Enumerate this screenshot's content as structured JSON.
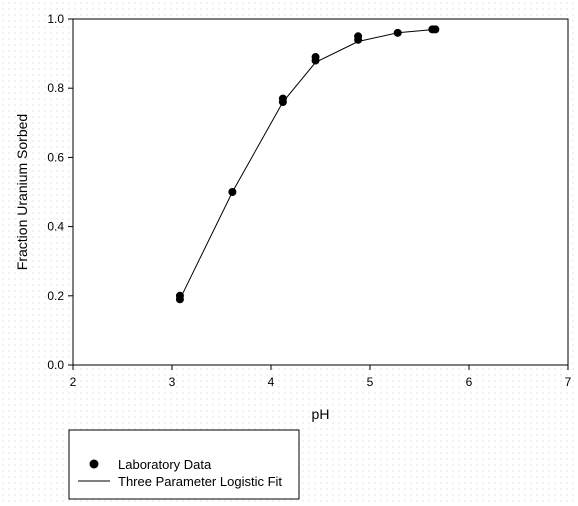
{
  "chart_data": {
    "type": "scatter",
    "xlabel": "pH",
    "ylabel": "Fraction Uranium Sorbed",
    "xlim": [
      2,
      7
    ],
    "ylim": [
      0,
      1.0
    ],
    "x_ticks": [
      "2",
      "3",
      "4",
      "5",
      "6",
      "7"
    ],
    "y_ticks": [
      "0.0",
      "0.2",
      "0.4",
      "0.6",
      "0.8",
      "1.0"
    ],
    "grid": false,
    "legend_position": "bottom-left",
    "series": [
      {
        "name": "Laboratory Data",
        "kind": "points",
        "color": "#000000",
        "points": [
          [
            3.08,
            0.19
          ],
          [
            3.08,
            0.2
          ],
          [
            3.61,
            0.5
          ],
          [
            4.12,
            0.76
          ],
          [
            4.12,
            0.77
          ],
          [
            4.45,
            0.88
          ],
          [
            4.45,
            0.89
          ],
          [
            4.88,
            0.94
          ],
          [
            4.88,
            0.95
          ],
          [
            5.28,
            0.96
          ],
          [
            5.63,
            0.97
          ],
          [
            5.66,
            0.97
          ]
        ]
      },
      {
        "name": "Three Parameter Logistic Fit",
        "kind": "line",
        "color": "#000000",
        "points": [
          [
            3.08,
            0.19
          ],
          [
            3.61,
            0.5
          ],
          [
            4.12,
            0.76
          ],
          [
            4.45,
            0.875
          ],
          [
            4.88,
            0.935
          ],
          [
            5.28,
            0.96
          ],
          [
            5.66,
            0.97
          ]
        ]
      }
    ]
  }
}
